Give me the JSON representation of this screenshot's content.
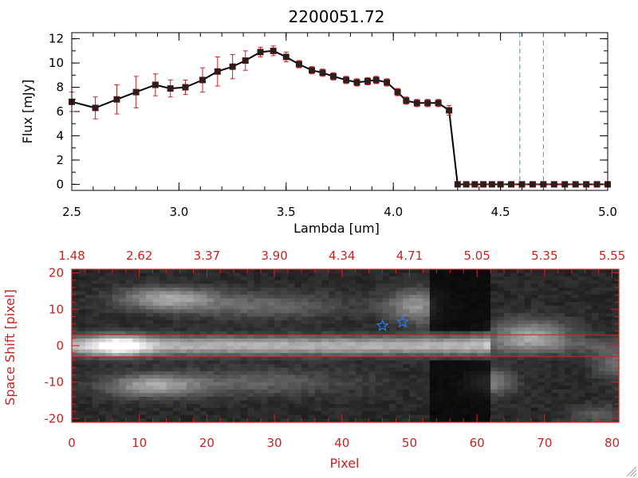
{
  "colors": {
    "red": "#cc2222",
    "black": "#000000",
    "cyan": "#2aa8d8",
    "star": "#2f7be8"
  },
  "chart_data": [
    {
      "type": "line",
      "title": "2200051.72",
      "xlabel": "Lambda [um]",
      "ylabel": "Flux [mJy]",
      "xlim": [
        2.5,
        5.0
      ],
      "ylim": [
        -0.5,
        12.5
      ],
      "xticks": [
        "2.5",
        "3.0",
        "3.5",
        "4.0",
        "4.5",
        "5.0"
      ],
      "yticks": [
        "0",
        "2",
        "4",
        "6",
        "8",
        "10",
        "12"
      ],
      "x": [
        2.5,
        2.61,
        2.71,
        2.8,
        2.89,
        2.96,
        3.03,
        3.11,
        3.18,
        3.25,
        3.31,
        3.38,
        3.44,
        3.5,
        3.56,
        3.62,
        3.67,
        3.72,
        3.78,
        3.83,
        3.88,
        3.92,
        3.97,
        4.02,
        4.06,
        4.11,
        4.16,
        4.21,
        4.26,
        4.3,
        4.34,
        4.38,
        4.42,
        4.46,
        4.5,
        4.55,
        4.6,
        4.65,
        4.7,
        4.75,
        4.8,
        4.85,
        4.9,
        4.95,
        5.0
      ],
      "y": [
        6.8,
        6.3,
        7.0,
        7.6,
        8.2,
        7.9,
        8.0,
        8.6,
        9.3,
        9.7,
        10.2,
        10.9,
        11.0,
        10.5,
        9.9,
        9.4,
        9.2,
        8.9,
        8.6,
        8.4,
        8.5,
        8.6,
        8.4,
        7.6,
        6.9,
        6.7,
        6.7,
        6.7,
        6.1,
        0,
        0,
        0,
        0,
        0,
        0,
        0,
        0,
        0,
        0,
        0,
        0,
        0,
        0,
        0,
        0
      ],
      "errors": [
        0.8,
        0.9,
        1.2,
        1.3,
        0.9,
        0.7,
        0.6,
        1.0,
        1.2,
        1.0,
        0.8,
        0.4,
        0.4,
        0.4,
        0.3,
        0.3,
        0.3,
        0.3,
        0.3,
        0.3,
        0.3,
        0.3,
        0.3,
        0.3,
        0.3,
        0.3,
        0.3,
        0.3,
        0.4,
        0,
        0,
        0,
        0,
        0,
        0,
        0,
        0,
        0,
        0,
        0,
        0,
        0,
        0,
        0,
        0
      ],
      "vlines": [
        4.59,
        4.7
      ],
      "grid": false
    },
    {
      "type": "heatmap",
      "xlabel": "Pixel",
      "ylabel": "Space Shift [pixel]",
      "xlim": [
        0,
        81
      ],
      "ylim": [
        -21,
        21
      ],
      "xticks": [
        "0",
        "10",
        "20",
        "30",
        "40",
        "50",
        "60",
        "70",
        "80"
      ],
      "yticks": [
        "-20",
        "-10",
        "0",
        "10",
        "20"
      ],
      "top_ticks": [
        "1.48",
        "2.62",
        "3.37",
        "3.90",
        "4.34",
        "4.71",
        "5.05",
        "5.35",
        "5.55"
      ],
      "hlines": [
        3,
        -3
      ],
      "stars": [
        {
          "x": 46,
          "y": 5.5
        },
        {
          "x": 49,
          "y": 6.5
        }
      ]
    }
  ]
}
